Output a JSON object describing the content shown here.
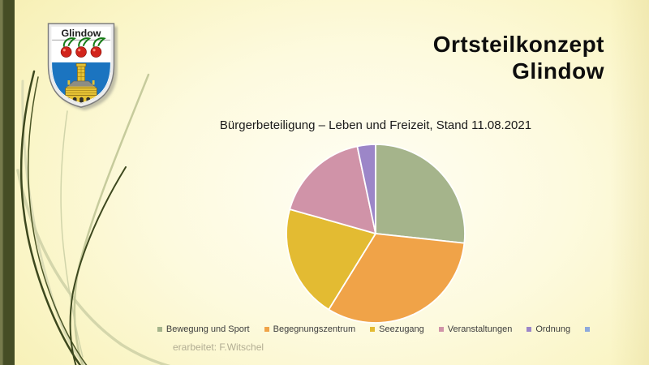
{
  "slide": {
    "title_line1": "Ortsteilkonzept",
    "title_line2": "Glindow",
    "footer": "erarbeitet: F.Witschel"
  },
  "crest": {
    "banner": "Glindow"
  },
  "chart_data": {
    "type": "pie",
    "title": "Bürgerbeteiligung – Leben und Freizeit, Stand 11.08.2021",
    "categories": [
      "Bewegung und Sport",
      "Begegnungszentrum",
      "Seezugang",
      "Veranstaltungen",
      "Ordnung"
    ],
    "values": [
      26.7,
      32.1,
      20.6,
      17.3,
      3.3
    ],
    "unit": "percent_of_circle",
    "colors": [
      "#a5b48b",
      "#f0a348",
      "#e3bb32",
      "#d093a8",
      "#9c86c8"
    ],
    "extra_legend": {
      "label": "",
      "color": "#8ea9dc"
    },
    "start_angle_deg": 0,
    "direction": "clockwise",
    "legend_position": "bottom",
    "slice_border_color": "#ffffff"
  },
  "theme": {
    "background": "#fbf7cc",
    "left_bar": "#454d25",
    "wisp_dark": "#3d481e",
    "wisp_light": "#c6cba0",
    "crest_blue": "#1b74c0",
    "cherry_red": "#d2251c",
    "brick_yellow": "#e5c234"
  }
}
